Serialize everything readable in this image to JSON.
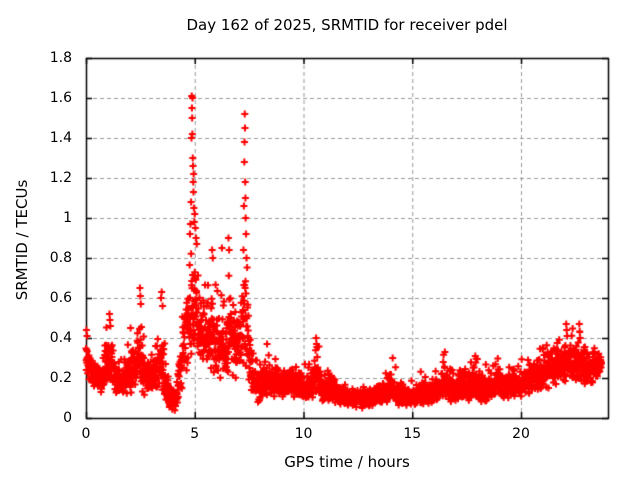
{
  "chart_data": {
    "type": "scatter",
    "title": "Day 162 of 2025, SRMTID for receiver pdel",
    "xlabel": "GPS time / hours",
    "ylabel": "SRMTID / TECUs",
    "xlim": [
      0,
      24
    ],
    "ylim": [
      0,
      1.8
    ],
    "xticks": {
      "values": [
        0,
        5,
        10,
        15,
        20
      ],
      "labels": [
        "0",
        "5",
        "10",
        "15",
        "20"
      ]
    },
    "yticks": {
      "values": [
        0,
        0.2,
        0.4,
        0.6,
        0.8,
        1,
        1.2,
        1.4,
        1.6,
        1.8
      ],
      "labels": [
        "0",
        "0.2",
        "0.4",
        "0.6",
        "0.8",
        "1",
        "1.2",
        "1.4",
        "1.6",
        "1.8"
      ]
    },
    "grid": {
      "shown": true,
      "style": "dashed",
      "color": "#9a9a9a",
      "dash": [
        4,
        3
      ]
    },
    "legend": {
      "shown": false
    },
    "marker": {
      "shape": "plus",
      "color": "#ff0000",
      "size": 7,
      "stroke": 2
    },
    "axis_color": "#000000",
    "background_color": "#ffffff",
    "sampling": {
      "start_hours": 0,
      "end_hours": 23.7,
      "step_hours": 0.008333
    },
    "envelope_band": [
      [
        0.0,
        0.2,
        0.46
      ],
      [
        0.3,
        0.14,
        0.34
      ],
      [
        0.7,
        0.12,
        0.3
      ],
      [
        1.05,
        0.14,
        0.5
      ],
      [
        1.3,
        0.12,
        0.38
      ],
      [
        1.6,
        0.1,
        0.3
      ],
      [
        2.0,
        0.12,
        0.4
      ],
      [
        2.5,
        0.12,
        0.58
      ],
      [
        2.8,
        0.1,
        0.32
      ],
      [
        3.1,
        0.11,
        0.35
      ],
      [
        3.5,
        0.12,
        0.55
      ],
      [
        3.8,
        0.04,
        0.22
      ],
      [
        4.1,
        0.03,
        0.16
      ],
      [
        4.4,
        0.1,
        0.5
      ],
      [
        4.7,
        0.25,
        0.82
      ],
      [
        4.95,
        0.32,
        0.95
      ],
      [
        5.2,
        0.28,
        0.72
      ],
      [
        5.5,
        0.24,
        0.65
      ],
      [
        5.8,
        0.22,
        0.78
      ],
      [
        6.1,
        0.2,
        0.62
      ],
      [
        6.4,
        0.18,
        0.6
      ],
      [
        6.6,
        0.2,
        0.8
      ],
      [
        6.9,
        0.18,
        0.58
      ],
      [
        7.15,
        0.2,
        0.72
      ],
      [
        7.35,
        0.2,
        0.82
      ],
      [
        7.6,
        0.1,
        0.45
      ],
      [
        7.95,
        0.05,
        0.28
      ],
      [
        8.3,
        0.1,
        0.35
      ],
      [
        8.7,
        0.1,
        0.3
      ],
      [
        9.1,
        0.09,
        0.28
      ],
      [
        9.45,
        0.1,
        0.33
      ],
      [
        9.8,
        0.08,
        0.26
      ],
      [
        10.2,
        0.08,
        0.28
      ],
      [
        10.6,
        0.1,
        0.4
      ],
      [
        10.9,
        0.07,
        0.25
      ],
      [
        11.3,
        0.07,
        0.28
      ],
      [
        11.7,
        0.06,
        0.2
      ],
      [
        12.1,
        0.05,
        0.16
      ],
      [
        12.6,
        0.05,
        0.16
      ],
      [
        13.1,
        0.05,
        0.18
      ],
      [
        13.6,
        0.06,
        0.2
      ],
      [
        14.1,
        0.06,
        0.28
      ],
      [
        14.5,
        0.05,
        0.18
      ],
      [
        15.0,
        0.06,
        0.19
      ],
      [
        15.5,
        0.06,
        0.23
      ],
      [
        16.0,
        0.06,
        0.21
      ],
      [
        16.5,
        0.08,
        0.32
      ],
      [
        16.9,
        0.07,
        0.24
      ],
      [
        17.4,
        0.08,
        0.27
      ],
      [
        17.9,
        0.08,
        0.3
      ],
      [
        18.4,
        0.07,
        0.25
      ],
      [
        18.9,
        0.09,
        0.29
      ],
      [
        19.4,
        0.08,
        0.26
      ],
      [
        19.9,
        0.09,
        0.28
      ],
      [
        20.4,
        0.11,
        0.32
      ],
      [
        20.9,
        0.13,
        0.36
      ],
      [
        21.4,
        0.15,
        0.4
      ],
      [
        21.9,
        0.17,
        0.43
      ],
      [
        22.4,
        0.18,
        0.44
      ],
      [
        22.8,
        0.16,
        0.42
      ],
      [
        23.2,
        0.15,
        0.38
      ],
      [
        23.7,
        0.22,
        0.4
      ]
    ],
    "spike_points": [
      [
        0.02,
        0.44
      ],
      [
        0.05,
        0.41
      ],
      [
        1.08,
        0.52
      ],
      [
        1.1,
        0.49
      ],
      [
        1.12,
        0.46
      ],
      [
        2.05,
        0.45
      ],
      [
        2.48,
        0.65
      ],
      [
        2.5,
        0.61
      ],
      [
        2.52,
        0.57
      ],
      [
        3.45,
        0.6
      ],
      [
        3.48,
        0.63
      ],
      [
        3.52,
        0.56
      ],
      [
        4.78,
        0.92
      ],
      [
        4.8,
        0.97
      ],
      [
        4.83,
        1.08
      ],
      [
        4.85,
        1.4
      ],
      [
        4.86,
        1.61
      ],
      [
        4.87,
        1.55
      ],
      [
        4.88,
        1.5
      ],
      [
        4.89,
        1.42
      ],
      [
        4.9,
        1.6
      ],
      [
        4.91,
        1.3
      ],
      [
        4.92,
        1.26
      ],
      [
        4.93,
        1.18
      ],
      [
        4.94,
        1.13
      ],
      [
        4.95,
        1.22
      ],
      [
        4.96,
        1.05
      ],
      [
        4.98,
        0.98
      ],
      [
        5.0,
        1.02
      ],
      [
        5.03,
        0.95
      ],
      [
        5.06,
        0.9
      ],
      [
        5.8,
        0.84
      ],
      [
        5.83,
        0.8
      ],
      [
        6.25,
        0.85
      ],
      [
        6.55,
        0.9
      ],
      [
        6.58,
        0.84
      ],
      [
        7.24,
        0.84
      ],
      [
        7.26,
        1.06
      ],
      [
        7.28,
        1.28
      ],
      [
        7.29,
        1.38
      ],
      [
        7.3,
        1.52
      ],
      [
        7.31,
        1.45
      ],
      [
        7.32,
        1.18
      ],
      [
        7.33,
        1.1
      ],
      [
        7.34,
        1.0
      ],
      [
        7.36,
        0.92
      ],
      [
        7.38,
        0.8
      ],
      [
        10.58,
        0.4
      ],
      [
        10.6,
        0.37
      ],
      [
        14.1,
        0.3
      ],
      [
        16.5,
        0.33
      ],
      [
        17.9,
        0.31
      ],
      [
        22.08,
        0.47
      ],
      [
        22.1,
        0.44
      ],
      [
        22.12,
        0.41
      ],
      [
        22.68,
        0.47
      ],
      [
        22.7,
        0.43
      ],
      [
        22.72,
        0.4
      ]
    ],
    "notable_features": {
      "max_value": 1.61,
      "max_value_time": 4.9,
      "secondary_peak_value": 1.52,
      "secondary_peak_time": 7.3,
      "baseline_range": [
        0.05,
        0.3
      ]
    }
  }
}
